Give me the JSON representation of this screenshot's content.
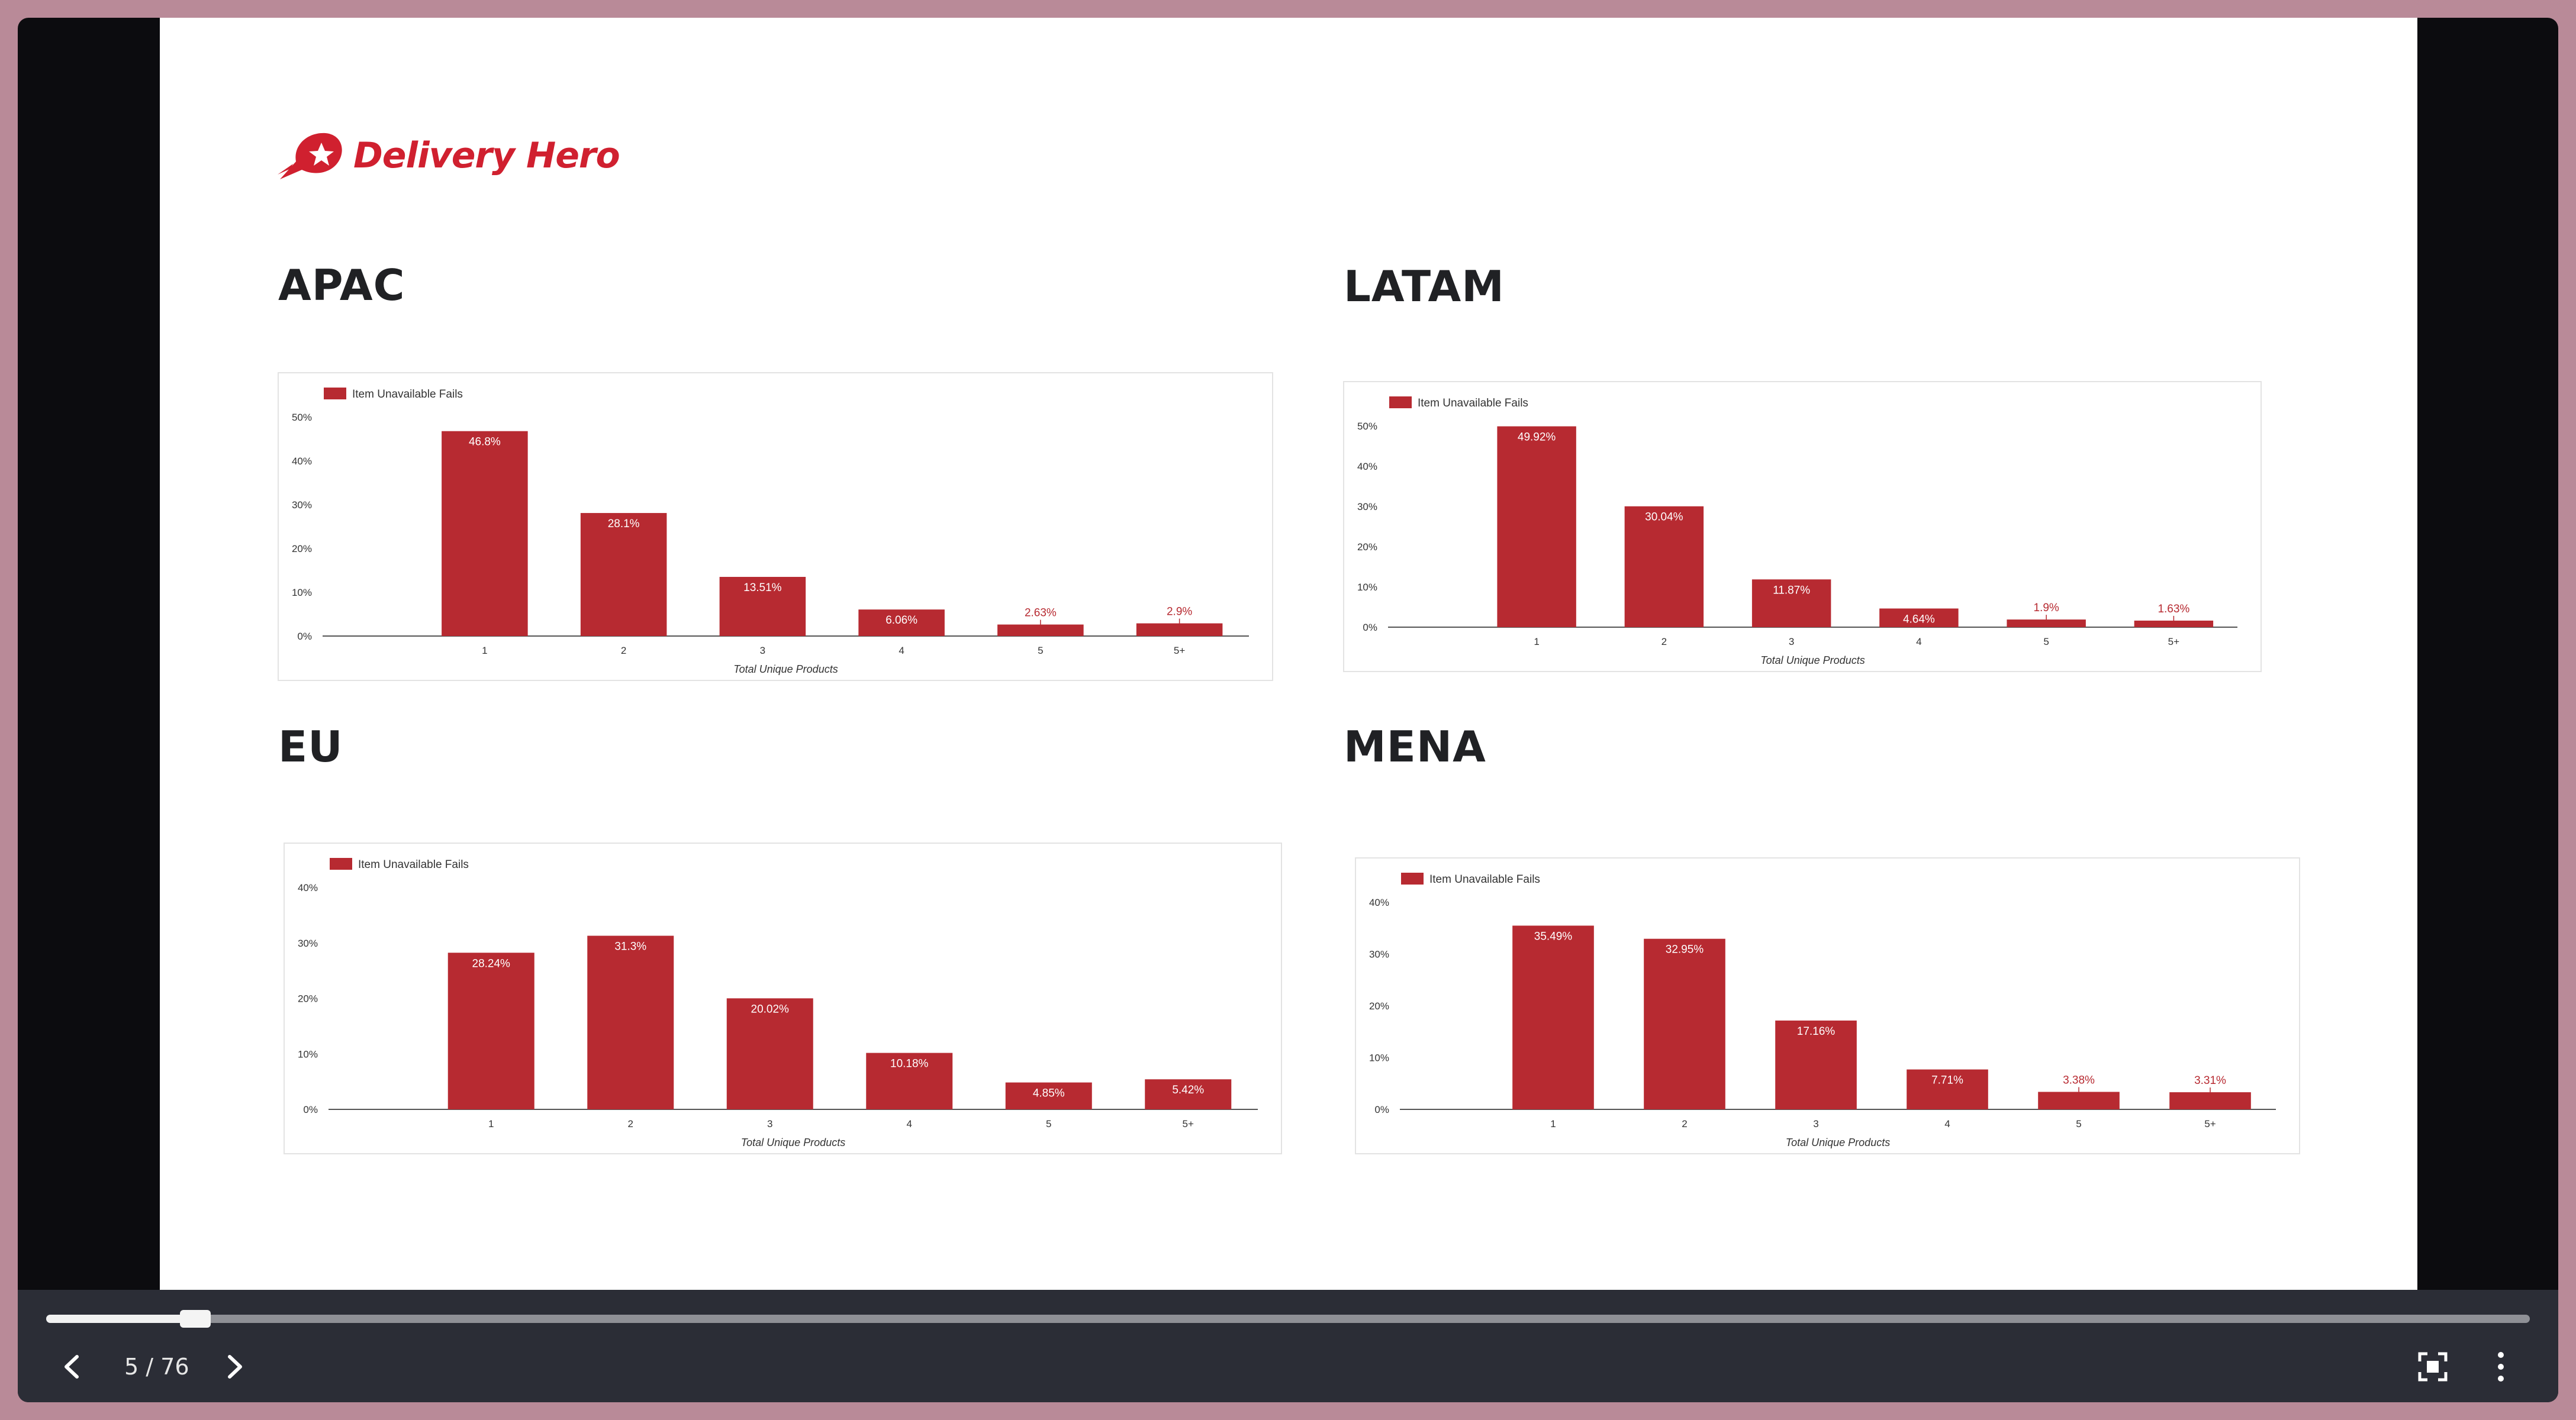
{
  "logo": {
    "text": "Delivery Hero"
  },
  "colors": {
    "bar": "#b72a31",
    "accent": "#d0202f"
  },
  "regions": [
    {
      "title": "APAC",
      "chart_index": 0
    },
    {
      "title": "LATAM",
      "chart_index": 1
    },
    {
      "title": "EU",
      "chart_index": 2
    },
    {
      "title": "MENA",
      "chart_index": 3
    }
  ],
  "chart_data": [
    {
      "type": "bar",
      "categories": [
        "1",
        "2",
        "3",
        "4",
        "5",
        "5+"
      ],
      "series": [
        {
          "name": "Item Unavailable Fails",
          "values": [
            46.8,
            28.1,
            13.51,
            6.06,
            2.63,
            2.9
          ]
        }
      ],
      "data_labels": [
        "46.8%",
        "28.1%",
        "13.51%",
        "6.06%",
        "2.63%",
        "2.9%"
      ],
      "yticks": [
        "0%",
        "10%",
        "20%",
        "30%",
        "40%",
        "50%"
      ],
      "ylim": [
        0,
        50
      ],
      "xlabel": "Total Unique Products",
      "legend": "top-left"
    },
    {
      "type": "bar",
      "categories": [
        "1",
        "2",
        "3",
        "4",
        "5",
        "5+"
      ],
      "series": [
        {
          "name": "Item Unavailable Fails",
          "values": [
            49.92,
            30.04,
            11.87,
            4.64,
            1.9,
            1.63
          ]
        }
      ],
      "data_labels": [
        "49.92%",
        "30.04%",
        "11.87%",
        "4.64%",
        "1.9%",
        "1.63%"
      ],
      "yticks": [
        "0%",
        "10%",
        "20%",
        "30%",
        "40%",
        "50%"
      ],
      "ylim": [
        0,
        50
      ],
      "xlabel": "Total Unique Products",
      "legend": "top-left"
    },
    {
      "type": "bar",
      "categories": [
        "1",
        "2",
        "3",
        "4",
        "5",
        "5+"
      ],
      "series": [
        {
          "name": "Item Unavailable Fails",
          "values": [
            28.24,
            31.3,
            20.02,
            10.18,
            4.85,
            5.42
          ]
        }
      ],
      "data_labels": [
        "28.24%",
        "31.3%",
        "20.02%",
        "10.18%",
        "4.85%",
        "5.42%"
      ],
      "yticks": [
        "0%",
        "10%",
        "20%",
        "30%",
        "40%"
      ],
      "ylim": [
        0,
        40
      ],
      "xlabel": "Total Unique Products",
      "legend": "top-left"
    },
    {
      "type": "bar",
      "categories": [
        "1",
        "2",
        "3",
        "4",
        "5",
        "5+"
      ],
      "series": [
        {
          "name": "Item Unavailable Fails",
          "values": [
            35.49,
            32.95,
            17.16,
            7.71,
            3.38,
            3.31
          ]
        }
      ],
      "data_labels": [
        "35.49%",
        "32.95%",
        "17.16%",
        "7.71%",
        "3.38%",
        "3.31%"
      ],
      "yticks": [
        "0%",
        "10%",
        "20%",
        "30%",
        "40%"
      ],
      "ylim": [
        0,
        40
      ],
      "xlabel": "Total Unique Products",
      "legend": "top-left"
    }
  ],
  "player": {
    "progress": 0.06,
    "page_indicator": "5 / 76",
    "prev_icon": "chevron-left-icon",
    "next_icon": "chevron-right-icon",
    "fullscreen_icon": "fullscreen-icon",
    "more_icon": "more-vertical-icon"
  }
}
